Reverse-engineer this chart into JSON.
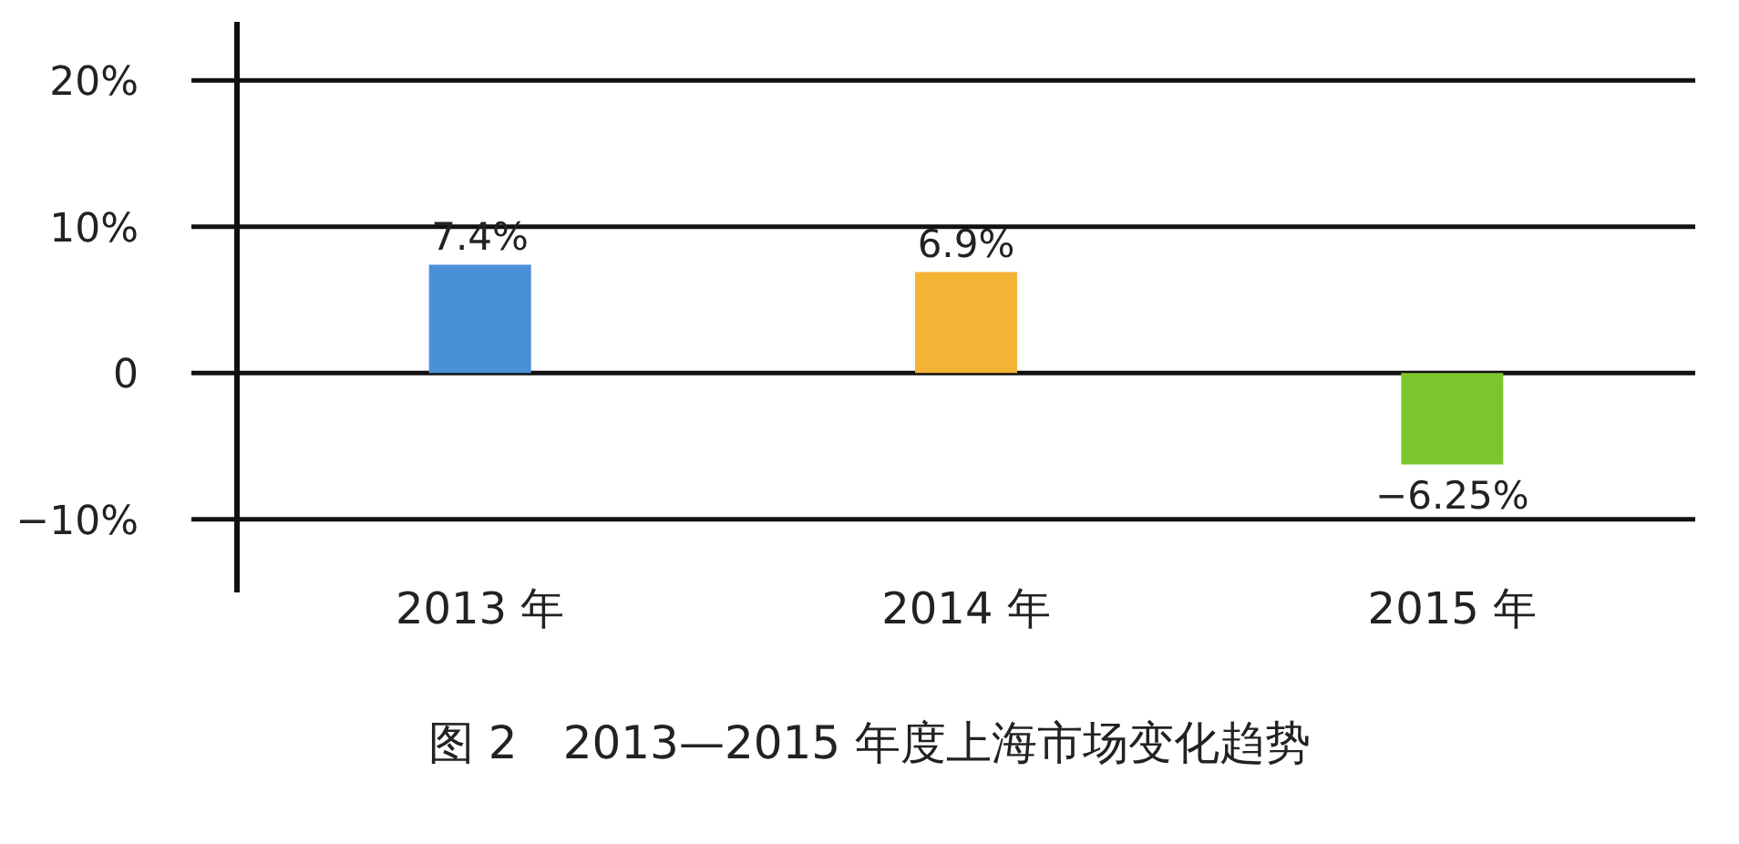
{
  "chart_data": {
    "type": "bar",
    "title": "图 2　2013—2015 年度上海市场变化趋势",
    "categories": [
      "2013 年",
      "2014 年",
      "2015 年"
    ],
    "values": [
      7.4,
      6.9,
      -6.25
    ],
    "colors": [
      "#4a90d9",
      "#f5b335",
      "#7dc52e"
    ],
    "ylim": [
      -15,
      24
    ],
    "yticks": [
      {
        "value": -10,
        "label": "−10%"
      },
      0,
      {
        "value": 10,
        "label": "10%"
      },
      {
        "value": 20,
        "label": "20%"
      }
    ],
    "grid": "y",
    "value_labels": [
      "7.4%",
      "6.9%",
      "−6.25%"
    ]
  }
}
